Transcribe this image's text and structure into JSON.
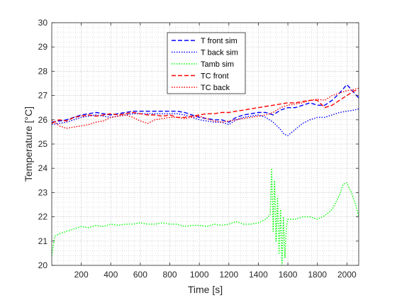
{
  "chart_data": {
    "type": "line",
    "title": "",
    "xlabel": "Time [s]",
    "ylabel": "Temperature [°C]",
    "xlim": [
      0,
      2080
    ],
    "ylim": [
      20,
      30
    ],
    "xticks": [
      200,
      400,
      600,
      800,
      1000,
      1200,
      1400,
      1600,
      1800,
      2000
    ],
    "yticks": [
      20,
      21,
      22,
      23,
      24,
      25,
      26,
      27,
      28,
      29,
      30
    ],
    "grid": true,
    "minor_grid": true,
    "legend_position": "top-center",
    "series": [
      {
        "name": "T front sim",
        "color": "#0000ff",
        "style": "dashed",
        "x": [
          0,
          50,
          100,
          150,
          200,
          250,
          300,
          350,
          400,
          450,
          500,
          550,
          600,
          650,
          700,
          750,
          800,
          850,
          900,
          950,
          1000,
          1050,
          1100,
          1150,
          1200,
          1250,
          1300,
          1350,
          1400,
          1450,
          1500,
          1550,
          1600,
          1650,
          1700,
          1750,
          1800,
          1850,
          1900,
          1950,
          2000,
          2050,
          2080
        ],
        "values": [
          25.9,
          25.95,
          26.0,
          26.1,
          26.2,
          26.25,
          26.3,
          26.25,
          26.2,
          26.25,
          26.3,
          26.35,
          26.35,
          26.35,
          26.35,
          26.35,
          26.35,
          26.35,
          26.3,
          26.2,
          26.1,
          26.05,
          26.0,
          26.0,
          25.9,
          26.1,
          26.2,
          26.25,
          26.3,
          26.3,
          26.2,
          26.4,
          26.5,
          26.5,
          26.6,
          26.7,
          26.6,
          26.6,
          26.8,
          27.1,
          27.45,
          27.1,
          26.9
        ]
      },
      {
        "name": "T back sim",
        "color": "#0000ff",
        "style": "dotted",
        "x": [
          0,
          50,
          100,
          150,
          200,
          250,
          300,
          350,
          400,
          450,
          500,
          550,
          600,
          650,
          700,
          750,
          800,
          850,
          900,
          950,
          1000,
          1050,
          1100,
          1150,
          1200,
          1250,
          1300,
          1350,
          1400,
          1450,
          1500,
          1550,
          1575,
          1600,
          1650,
          1700,
          1750,
          1800,
          1850,
          1900,
          1950,
          2000,
          2050,
          2080
        ],
        "values": [
          25.8,
          25.85,
          25.9,
          26.0,
          26.1,
          26.15,
          26.2,
          26.15,
          26.1,
          26.15,
          26.2,
          26.25,
          26.25,
          26.25,
          26.25,
          26.25,
          26.25,
          26.25,
          26.2,
          26.1,
          26.0,
          25.95,
          25.9,
          25.9,
          25.8,
          26.0,
          26.1,
          26.15,
          26.2,
          26.1,
          25.9,
          25.6,
          25.4,
          25.35,
          25.6,
          25.85,
          26.0,
          26.1,
          26.1,
          26.2,
          26.3,
          26.35,
          26.4,
          26.45
        ]
      },
      {
        "name": "Tamb sim",
        "color": "#00ff00",
        "style": "dotted",
        "x": [
          0,
          20,
          50,
          100,
          150,
          200,
          250,
          300,
          350,
          400,
          450,
          500,
          550,
          600,
          650,
          700,
          750,
          800,
          850,
          900,
          950,
          1000,
          1050,
          1100,
          1150,
          1200,
          1250,
          1300,
          1350,
          1400,
          1450,
          1480,
          1490,
          1500,
          1510,
          1520,
          1530,
          1540,
          1550,
          1560,
          1570,
          1580,
          1590,
          1600,
          1650,
          1700,
          1750,
          1800,
          1850,
          1900,
          1950,
          1975,
          2000,
          2030,
          2060,
          2080
        ],
        "values": [
          20.4,
          21.2,
          21.3,
          21.4,
          21.5,
          21.6,
          21.55,
          21.65,
          21.6,
          21.7,
          21.65,
          21.7,
          21.7,
          21.75,
          21.7,
          21.7,
          21.75,
          21.7,
          21.7,
          21.6,
          21.65,
          21.65,
          21.6,
          21.7,
          21.65,
          21.7,
          21.8,
          21.7,
          21.7,
          21.75,
          21.9,
          22.1,
          24.0,
          21.4,
          23.5,
          21.0,
          22.8,
          20.5,
          22.3,
          20.0,
          22.0,
          20.3,
          21.6,
          21.9,
          21.9,
          22.0,
          22.0,
          21.9,
          22.05,
          22.3,
          22.9,
          23.35,
          23.4,
          23.0,
          22.5,
          22.0
        ]
      },
      {
        "name": "TC front",
        "color": "#ff0000",
        "style": "dashed",
        "x": [
          0,
          50,
          100,
          150,
          200,
          250,
          300,
          350,
          400,
          450,
          500,
          550,
          600,
          650,
          700,
          750,
          800,
          850,
          900,
          950,
          1000,
          1050,
          1100,
          1150,
          1200,
          1250,
          1300,
          1350,
          1400,
          1450,
          1500,
          1550,
          1600,
          1650,
          1700,
          1750,
          1800,
          1850,
          1900,
          1950,
          2000,
          2050,
          2080
        ],
        "values": [
          25.85,
          26.0,
          25.95,
          26.1,
          26.15,
          26.2,
          26.15,
          26.2,
          26.25,
          26.2,
          26.25,
          26.3,
          26.25,
          26.2,
          26.2,
          26.15,
          26.2,
          26.1,
          26.1,
          26.15,
          26.2,
          26.25,
          26.25,
          26.3,
          26.3,
          26.35,
          26.4,
          26.45,
          26.5,
          26.55,
          26.6,
          26.65,
          26.7,
          26.7,
          26.75,
          26.8,
          26.8,
          26.5,
          26.6,
          26.8,
          27.0,
          27.2,
          27.2
        ]
      },
      {
        "name": "TC back",
        "color": "#ff0000",
        "style": "dotted",
        "x": [
          0,
          50,
          100,
          150,
          200,
          250,
          300,
          350,
          400,
          450,
          500,
          550,
          600,
          650,
          700,
          750,
          800,
          850,
          900,
          950,
          1000,
          1050,
          1100,
          1150,
          1200,
          1250,
          1300,
          1350,
          1400,
          1450,
          1500,
          1550,
          1600,
          1650,
          1700,
          1750,
          1800,
          1850,
          1900,
          1950,
          2000,
          2050,
          2080
        ],
        "values": [
          26.0,
          25.75,
          25.65,
          25.7,
          25.75,
          25.8,
          25.9,
          25.95,
          26.1,
          26.15,
          26.2,
          26.1,
          25.95,
          25.85,
          26.0,
          26.05,
          26.1,
          26.1,
          26.05,
          26.1,
          26.15,
          26.05,
          25.95,
          25.9,
          25.95,
          26.0,
          26.05,
          26.1,
          26.15,
          26.2,
          26.3,
          26.5,
          26.6,
          26.65,
          26.7,
          26.8,
          26.85,
          26.8,
          27.0,
          27.1,
          27.2,
          27.25,
          27.3
        ]
      }
    ]
  }
}
